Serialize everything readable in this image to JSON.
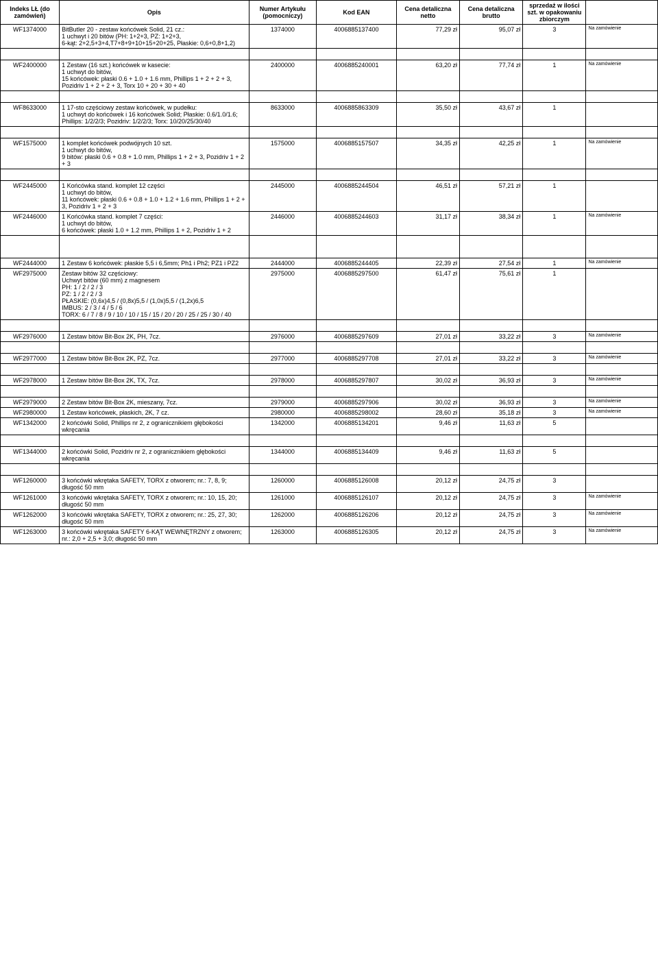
{
  "columns": [
    "Indeks LŁ (do zamówień)",
    "Opis",
    "Numer Artykułu (pomocniczy)",
    "Kod EAN",
    "Cena detaliczna netto",
    "Cena detaliczna brutto",
    "sprzedaż w ilości szt. w opakowaniu zbiorczym",
    ""
  ],
  "rows": [
    {
      "idx": "WF1374000",
      "opis": "BitButler 20 - zestaw końcówek Solid, 21 cz.:\n1 uchwyt i 20 bitów (PH: 1+2+3, PZ: 1+2+3,\n6-kąt: 2+2,5+3+4,T7+8+9+10+15+20+25, Płaskie: 0,6+0,8+1,2)",
      "numer": "1374000",
      "ean": "4006885137400",
      "netto": "77,29 zł",
      "brutto": "95,07 zł",
      "qty": "3",
      "note": "Na zamówienie"
    },
    {
      "idx": "WF2400000",
      "opis": "1 Zestaw (16 szt.) końcówek w kasecie:\n1 uchwyt do bitów,\n15 końcówek: płaski 0.6 + 1.0 + 1.6 mm, Phillips 1 + 2 + 2 + 3, Pozidriv 1 + 2 + 2 + 3, Torx 10 + 20 + 30 + 40",
      "numer": "2400000",
      "ean": "4006885240001",
      "netto": "63,20 zł",
      "brutto": "77,74 zł",
      "qty": "1",
      "note": "Na zamówienie"
    },
    {
      "idx": "WF8633000",
      "opis": "1 17-sto częściowy zestaw końcówek, w pudełku:\n1 uchwyt do końcówek i 16 końcówek Solid; Płaskie: 0.6/1.0/1.6; Phillips: 1/2/2/3; Pozidriv: 1/2/2/3; Torx: 10/20/25/30/40",
      "numer": "8633000",
      "ean": "4006885863309",
      "netto": "35,50 zł",
      "brutto": "43,67 zł",
      "qty": "1",
      "note": ""
    },
    {
      "idx": "WF1575000",
      "opis": "1 komplet końcówek podwójnych 10 szt.\n1 uchwyt do bitów,\n9 bitów: płaski 0.6 + 0.8 + 1.0 mm, Phillips 1 + 2 + 3, Pozidriv 1 + 2 + 3",
      "numer": "1575000",
      "ean": "4006885157507",
      "netto": "34,35 zł",
      "brutto": "42,25 zł",
      "qty": "1",
      "note": "Na zamówienie"
    },
    {
      "idx": "WF2445000",
      "opis": "1 Końcówka stand. komplet 12 części\n1 uchwyt do bitów,\n11 końcówek: płaski 0.6 + 0.8 + 1.0 + 1.2 + 1.6 mm, Phillips 1 + 2 + 3, Pozidriv 1 + 2 + 3",
      "numer": "2445000",
      "ean": "4006885244504",
      "netto": "46,51 zł",
      "brutto": "57,21 zł",
      "qty": "1",
      "note": ""
    },
    {
      "idx": "WF2446000",
      "opis": "1 Końcówka stand. komplet 7 części:\n1 uchwyt do bitów,\n6 końcówek: płaski 1.0 + 1.2 mm, Phillips 1 + 2, Pozidriv 1 + 2",
      "numer": "2446000",
      "ean": "4006885244603",
      "netto": "31,17 zł",
      "brutto": "38,34 zł",
      "qty": "1",
      "note": "Na zamówienie"
    },
    {
      "idx": "WF2444000",
      "opis": "1 Zestaw 6 końcówek: płaskie 5,5 i 6,5mm; Ph1 i Ph2; PZ1 i PZ2",
      "numer": "2444000",
      "ean": "4006885244405",
      "netto": "22,39 zł",
      "brutto": "27,54 zł",
      "qty": "1",
      "note": "Na zamówienie"
    },
    {
      "idx": "WF2975000",
      "opis": "Zestaw bitów 32 częściowy:\nUchwyt bitów (60 mm) z magnesem\n PH: 1 / 2 / 2 / 3\n PZ: 1 / 2 / 2 / 3\n PŁASKIE: (0,6x)4,5 / (0,8x)5,5 / (1,0x)5,5 / (1,2x)6,5\n IMBUS: 2 / 3 / 4 / 5 / 6\n TORX: 6 / 7 / 8 / 9 / 10 / 10 / 15 / 15 / 20 / 20 / 25 / 25 / 30 / 40",
      "numer": "2975000",
      "ean": "4006885297500",
      "netto": "61,47 zł",
      "brutto": "75,61 zł",
      "qty": "1",
      "note": ""
    },
    {
      "idx": "WF2976000",
      "opis": "1 Zestaw bitów Bit-Box 2K, PH, 7cz.",
      "numer": "2976000",
      "ean": "4006885297609",
      "netto": "27,01 zł",
      "brutto": "33,22 zł",
      "qty": "3",
      "note": "Na zamówienie"
    },
    {
      "idx": "WF2977000",
      "opis": "1 Zestaw bitów Bit-Box 2K, PZ, 7cz.",
      "numer": "2977000",
      "ean": "4006885297708",
      "netto": "27,01 zł",
      "brutto": "33,22 zł",
      "qty": "3",
      "note": "Na zamówienie"
    },
    {
      "idx": "WF2978000",
      "opis": "1 Zestaw bitów Bit-Box 2K, TX, 7cz.",
      "numer": "2978000",
      "ean": "4006885297807",
      "netto": "30,02 zł",
      "brutto": "36,93 zł",
      "qty": "3",
      "note": "Na zamówienie"
    },
    {
      "idx": "WF2979000",
      "opis": "2 Zestaw bitów Bit-Box 2K, mieszany, 7cz.",
      "numer": "2979000",
      "ean": "4006885297906",
      "netto": "30,02 zł",
      "brutto": "36,93 zł",
      "qty": "3",
      "note": "Na zamówienie"
    },
    {
      "idx": "WF2980000",
      "opis": "1 Zestaw końcówek, płaskich, 2K, 7 cz.",
      "numer": "2980000",
      "ean": "4006885298002",
      "netto": "28,60 zł",
      "brutto": "35,18 zł",
      "qty": "3",
      "note": "Na zamówienie"
    },
    {
      "idx": "WF1342000",
      "opis": "2 końcówki Solid, Phillips nr 2, z ogranicznikiem głębokości wkręcania",
      "numer": "1342000",
      "ean": "4006885134201",
      "netto": "9,46 zł",
      "brutto": "11,63 zł",
      "qty": "5",
      "note": ""
    },
    {
      "idx": "WF1344000",
      "opis": "2 końcówki Solid, Pozidriv nr 2, z ogranicznikiem głębokości wkręcania",
      "numer": "1344000",
      "ean": "4006885134409",
      "netto": "9,46 zł",
      "brutto": "11,63 zł",
      "qty": "5",
      "note": ""
    },
    {
      "idx": "WF1260000",
      "opis": "3 końcówki wkrętaka SAFETY, TORX z otworem; nr.: 7, 8, 9; długość 50 mm",
      "numer": "1260000",
      "ean": "4006885126008",
      "netto": "20,12 zł",
      "brutto": "24,75 zł",
      "qty": "3",
      "note": ""
    },
    {
      "idx": "WF1261000",
      "opis": "3 końcówki wkrętaka SAFETY, TORX z otworem; nr.: 10, 15, 20; długość 50 mm",
      "numer": "1261000",
      "ean": "4006885126107",
      "netto": "20,12 zł",
      "brutto": "24,75 zł",
      "qty": "3",
      "note": "Na zamówienie"
    },
    {
      "idx": "WF1262000",
      "opis": "3 końcówki wkrętaka SAFETY, TORX z otworem; nr.: 25, 27, 30; długość 50 mm",
      "numer": "1262000",
      "ean": "4006885126206",
      "netto": "20,12 zł",
      "brutto": "24,75 zł",
      "qty": "3",
      "note": "Na zamówienie"
    },
    {
      "idx": "WF1263000",
      "opis": "3 końcówki wkrętaka  SAFETY 6-KĄT WEWNĘTRZNY z otworem; nr.: 2,0 + 2,5 + 3,0;  długość 50 mm",
      "numer": "1263000",
      "ean": "4006885126305",
      "netto": "20,12 zł",
      "brutto": "24,75 zł",
      "qty": "3",
      "note": "Na zamówienie"
    }
  ]
}
